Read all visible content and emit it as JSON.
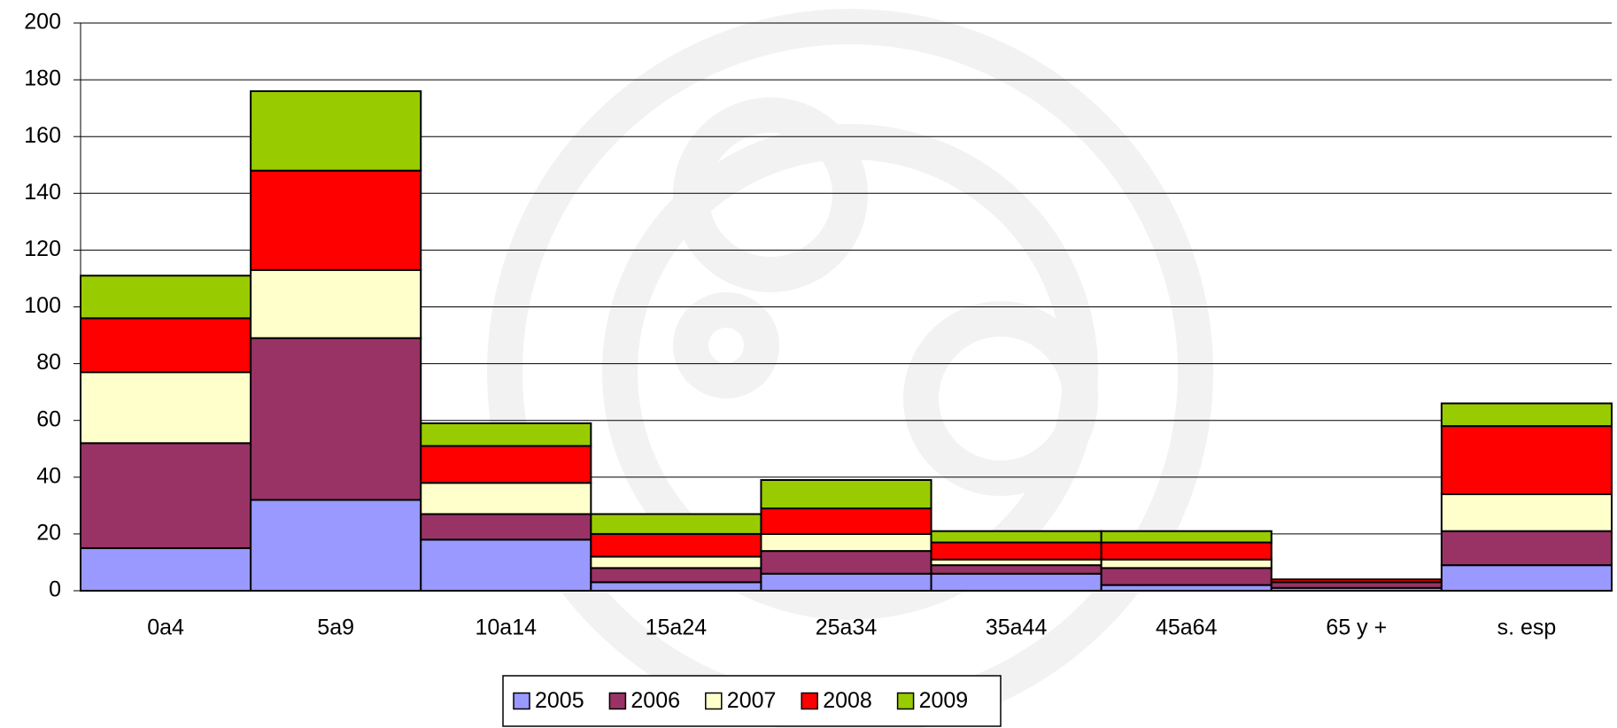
{
  "chart_data": {
    "type": "stacked-bar",
    "categories": [
      "0a4",
      "5a9",
      "10a14",
      "15a24",
      "25a34",
      "35a44",
      "45a64",
      "65 y +",
      "s. esp"
    ],
    "series": [
      {
        "name": "2005",
        "color": "#9999ff",
        "values": [
          15,
          32,
          18,
          3,
          6,
          6,
          2,
          1,
          9
        ]
      },
      {
        "name": "2006",
        "color": "#993366",
        "values": [
          37,
          57,
          9,
          5,
          8,
          3,
          6,
          2,
          12
        ]
      },
      {
        "name": "2007",
        "color": "#ffffcc",
        "values": [
          25,
          24,
          11,
          4,
          6,
          2,
          3,
          0,
          13
        ]
      },
      {
        "name": "2008",
        "color": "#ff0000",
        "values": [
          19,
          35,
          13,
          8,
          9,
          6,
          6,
          1,
          24
        ]
      },
      {
        "name": "2009",
        "color": "#99cc00",
        "values": [
          15,
          28,
          8,
          7,
          10,
          4,
          4,
          0,
          8
        ]
      }
    ],
    "ylim": [
      0,
      200
    ],
    "yticks": [
      0,
      20,
      40,
      60,
      80,
      100,
      120,
      140,
      160,
      180,
      200
    ],
    "grid": true,
    "legend": "bottom"
  }
}
